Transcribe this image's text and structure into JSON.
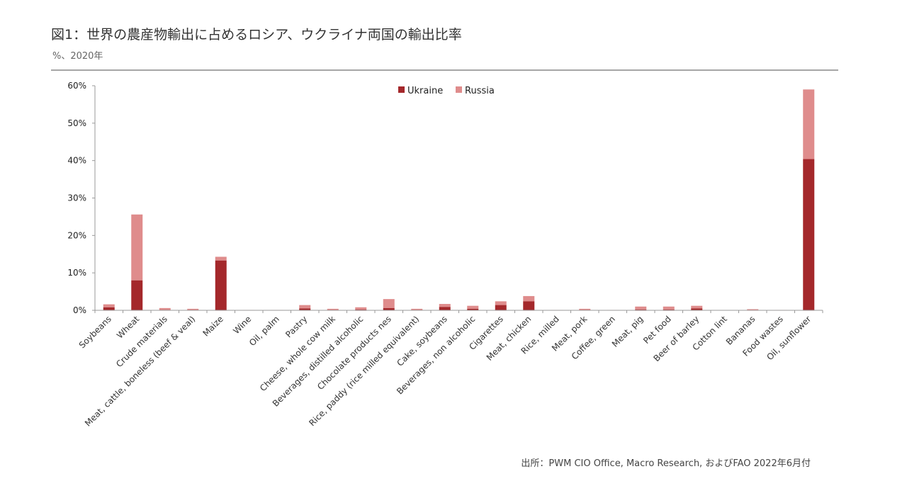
{
  "title": "図1：世界の農産物輸出に占めるロシア、ウクライナ両国の輸出比率",
  "subtitle": "%、2020年",
  "source": "出所：PWM CIO Office, Macro Research, およびFAO  2022年6月付",
  "colors": {
    "ukraine": "#a4282b",
    "russia": "#df8c8c",
    "axis": "#999999"
  },
  "chart_data": {
    "type": "bar",
    "stacked": true,
    "ylim": [
      0,
      60
    ],
    "yticks": [
      "0%",
      "10%",
      "20%",
      "30%",
      "40%",
      "50%",
      "60%"
    ],
    "ytick_values": [
      0,
      10,
      20,
      30,
      40,
      50,
      60
    ],
    "legend_position": "top-center",
    "categories": [
      "Soybeans",
      "Wheat",
      "Crude materials",
      "Meat, cattle, boneless (beef & veal)",
      "Maize",
      "Wine",
      "Oil, palm",
      "Pastry",
      "Cheese, whole cow milk",
      "Beverages, distilled alcoholic",
      "Chocolate products nes",
      "Rice, paddy (rice milled equivalent)",
      "Cake, soybeans",
      "Beverages, non alcoholic",
      "Cigarettes",
      "Meat, chicken",
      "Rice, milled",
      "Meat, pork",
      "Coffee, green",
      "Meat, pig",
      "Pet food",
      "Beer of barley",
      "Cotton lint",
      "Bananas",
      "Food wastes",
      "Oil, sunflower"
    ],
    "series": [
      {
        "name": "Ukraine",
        "values": [
          0.8,
          8.0,
          0.1,
          0.1,
          13.3,
          0.0,
          0.0,
          0.5,
          0.1,
          0.2,
          0.6,
          0.1,
          0.9,
          0.4,
          1.4,
          2.4,
          0.0,
          0.1,
          0.0,
          0.2,
          0.2,
          0.5,
          0.0,
          0.0,
          0.0,
          40.4
        ]
      },
      {
        "name": "Russia",
        "values": [
          0.8,
          17.6,
          0.5,
          0.3,
          1.0,
          0.1,
          0.1,
          0.9,
          0.3,
          0.6,
          2.4,
          0.3,
          0.8,
          0.8,
          1.0,
          1.4,
          0.1,
          0.3,
          0.1,
          0.8,
          0.8,
          0.7,
          0.0,
          0.3,
          0.1,
          18.6
        ]
      }
    ]
  }
}
